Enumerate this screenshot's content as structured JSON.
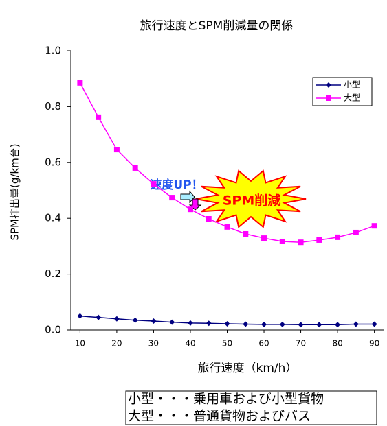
{
  "chart_data": {
    "type": "line",
    "title": "旅行速度とSPM削減量の関係",
    "x_label": "旅行速度（km/h）",
    "y_label": "SPM排出量(g/km台)",
    "x": [
      10,
      15,
      20,
      25,
      30,
      35,
      40,
      45,
      50,
      55,
      60,
      65,
      70,
      75,
      80,
      85,
      90
    ],
    "series": [
      {
        "name": "小型",
        "color": "#000080",
        "marker": "diamond",
        "values": [
          0.05,
          0.045,
          0.04,
          0.035,
          0.032,
          0.028,
          0.025,
          0.024,
          0.022,
          0.021,
          0.02,
          0.02,
          0.019,
          0.019,
          0.019,
          0.021,
          0.021
        ]
      },
      {
        "name": "大型",
        "color": "#ff00ff",
        "marker": "square",
        "values": [
          0.885,
          0.762,
          0.646,
          0.58,
          0.523,
          0.474,
          0.432,
          0.398,
          0.369,
          0.344,
          0.329,
          0.317,
          0.314,
          0.322,
          0.332,
          0.349,
          0.373
        ]
      }
    ],
    "xlim": [
      7.5,
      92.5
    ],
    "xticks": [
      10,
      20,
      30,
      40,
      50,
      60,
      70,
      80,
      90
    ],
    "ylim": [
      0,
      1
    ],
    "yticks": [
      {
        "value": 0,
        "label": "0.0"
      },
      {
        "value": 0.2,
        "label": "0.2"
      },
      {
        "value": 0.4,
        "label": "0.4"
      },
      {
        "value": 0.6,
        "label": "0.6"
      },
      {
        "value": 0.8,
        "label": "0.8"
      },
      {
        "value": 1,
        "label": "1.0"
      }
    ],
    "grid": false,
    "legend": "upper right",
    "annotations": [
      "速度UP！",
      "SPM削減"
    ],
    "notes": [
      "小型・・・乗用車および小型貨物",
      "大型・・・普通貨物およびバス"
    ]
  }
}
